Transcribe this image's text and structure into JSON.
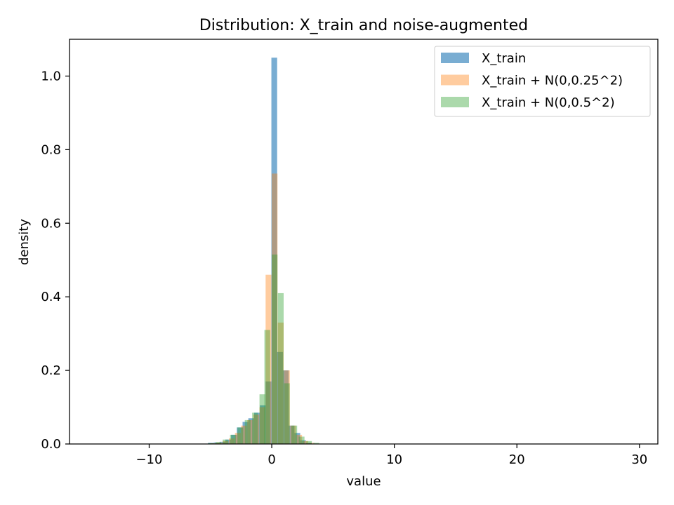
{
  "chart_data": {
    "type": "histogram",
    "title": "Distribution: X_train and noise-augmented",
    "xlabel": "value",
    "ylabel": "density",
    "xlim": [
      -16.5,
      31.5
    ],
    "ylim": [
      0,
      1.1
    ],
    "xticks": [
      -10,
      0,
      10,
      20,
      30
    ],
    "xtick_labels": [
      "−10",
      "0",
      "10",
      "20",
      "30"
    ],
    "yticks": [
      0.0,
      0.2,
      0.4,
      0.6,
      0.8,
      1.0
    ],
    "ytick_labels": [
      "0.0",
      "0.2",
      "0.4",
      "0.6",
      "0.8",
      "1.0"
    ],
    "grid": false,
    "legend_position": "top-right",
    "bin_width": 0.47,
    "series": [
      {
        "name": "X_train",
        "color": "#1f77b4",
        "alpha": 0.6,
        "bins": [
          {
            "x0": -5.2,
            "density": 0.003
          },
          {
            "x0": -4.73,
            "density": 0.004
          },
          {
            "x0": -4.26,
            "density": 0.006
          },
          {
            "x0": -3.79,
            "density": 0.012
          },
          {
            "x0": -3.32,
            "density": 0.025
          },
          {
            "x0": -2.85,
            "density": 0.045
          },
          {
            "x0": -2.38,
            "density": 0.06
          },
          {
            "x0": -1.91,
            "density": 0.07
          },
          {
            "x0": -1.44,
            "density": 0.085
          },
          {
            "x0": -0.97,
            "density": 0.105
          },
          {
            "x0": -0.5,
            "density": 0.17
          },
          {
            "x0": -0.03,
            "density": 1.05
          },
          {
            "x0": 0.44,
            "density": 0.25
          },
          {
            "x0": 0.91,
            "density": 0.2
          },
          {
            "x0": 1.38,
            "density": 0.05
          },
          {
            "x0": 1.85,
            "density": 0.03
          },
          {
            "x0": 2.32,
            "density": 0.01
          },
          {
            "x0": 2.79,
            "density": 0.003
          }
        ]
      },
      {
        "name": "X_train + N(0,0.25^2)",
        "color": "#ff7f0e",
        "alpha": 0.4,
        "bins": [
          {
            "x0": -5.0,
            "density": 0.002
          },
          {
            "x0": -4.5,
            "density": 0.004
          },
          {
            "x0": -4.0,
            "density": 0.008
          },
          {
            "x0": -3.5,
            "density": 0.015
          },
          {
            "x0": -3.0,
            "density": 0.03
          },
          {
            "x0": -2.5,
            "density": 0.05
          },
          {
            "x0": -2.0,
            "density": 0.065
          },
          {
            "x0": -1.5,
            "density": 0.08
          },
          {
            "x0": -1.0,
            "density": 0.1
          },
          {
            "x0": -0.5,
            "density": 0.46
          },
          {
            "x0": 0.0,
            "density": 0.735
          },
          {
            "x0": 0.5,
            "density": 0.33
          },
          {
            "x0": 1.0,
            "density": 0.2
          },
          {
            "x0": 1.5,
            "density": 0.05
          },
          {
            "x0": 2.0,
            "density": 0.025
          },
          {
            "x0": 2.5,
            "density": 0.008
          },
          {
            "x0": 3.0,
            "density": 0.003
          }
        ]
      },
      {
        "name": "X_train + N(0,0.5^2)",
        "color": "#2ca02c",
        "alpha": 0.4,
        "bins": [
          {
            "x0": -5.2,
            "density": 0.002
          },
          {
            "x0": -4.6,
            "density": 0.005
          },
          {
            "x0": -4.0,
            "density": 0.012
          },
          {
            "x0": -3.4,
            "density": 0.025
          },
          {
            "x0": -2.8,
            "density": 0.045
          },
          {
            "x0": -2.2,
            "density": 0.065
          },
          {
            "x0": -1.6,
            "density": 0.085
          },
          {
            "x0": -1.0,
            "density": 0.135
          },
          {
            "x0": -0.6,
            "density": 0.31
          },
          {
            "x0": 0.0,
            "density": 0.515
          },
          {
            "x0": 0.5,
            "density": 0.41
          },
          {
            "x0": 1.0,
            "density": 0.165
          },
          {
            "x0": 1.6,
            "density": 0.05
          },
          {
            "x0": 2.2,
            "density": 0.02
          },
          {
            "x0": 2.8,
            "density": 0.008
          },
          {
            "x0": 3.4,
            "density": 0.003
          }
        ]
      }
    ]
  }
}
